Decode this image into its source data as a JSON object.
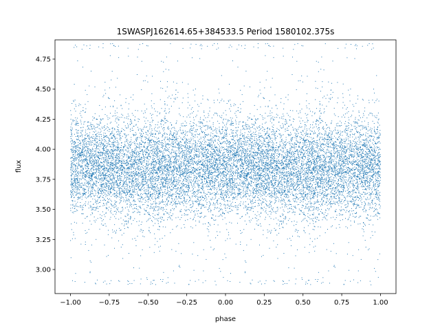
{
  "chart_data": {
    "type": "scatter",
    "title": "1SWASPJ162614.65+384533.5 Period 1580102.375s",
    "xlabel": "phase",
    "ylabel": "flux",
    "xlim": [
      -1.1,
      1.1
    ],
    "ylim": [
      2.8,
      4.91
    ],
    "xticks": [
      -1.0,
      -0.75,
      -0.5,
      -0.25,
      0.0,
      0.25,
      0.5,
      0.75,
      1.0
    ],
    "xtick_labels": [
      "−1.00",
      "−0.75",
      "−0.50",
      "−0.25",
      "0.00",
      "0.25",
      "0.50",
      "0.75",
      "1.00"
    ],
    "yticks": [
      3.0,
      3.25,
      3.5,
      3.75,
      4.0,
      4.25,
      4.5,
      4.75
    ],
    "ytick_labels": [
      "3.00",
      "3.25",
      "3.50",
      "3.75",
      "4.00",
      "4.25",
      "4.50",
      "4.75"
    ],
    "grid": false,
    "legend": false,
    "marker_color": "#1f77b4",
    "data_summary": {
      "x_range": [
        -1.0,
        1.0
      ],
      "core_band": [
        3.62,
        4.08
      ],
      "median_flux": 3.85,
      "full_range": [
        2.87,
        4.88
      ],
      "note_mirrored": "phase folded and mirrored: points in [-1,0] repeat points in [0,1]"
    }
  }
}
